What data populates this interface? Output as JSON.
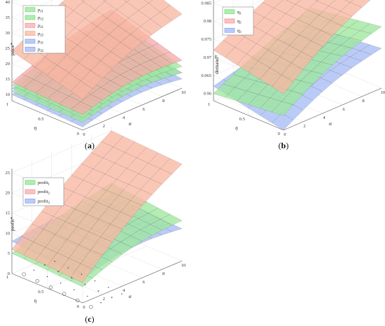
{
  "chart_data": [
    {
      "type": "surface3d",
      "panel_label": "a",
      "zlabel": "price*",
      "xlabel": "α",
      "ylabel": "η",
      "x_ticks": [
        "0",
        "2",
        "4",
        "6",
        "8",
        "10"
      ],
      "y_ticks": [
        "0",
        "0.5",
        "1"
      ],
      "z_ticks": [
        "10",
        "15",
        "20",
        "25",
        "30",
        "35",
        "40"
      ],
      "xlim": [
        0,
        10
      ],
      "ylim": [
        0,
        1
      ],
      "zlim": [
        8,
        42
      ],
      "legend": [
        "p11",
        "p12",
        "p21",
        "p22",
        "p31",
        "p32"
      ],
      "legend_sub": [
        [
          "p",
          "11"
        ],
        [
          "p",
          "12"
        ],
        [
          "p",
          "21"
        ],
        [
          "p",
          "22"
        ],
        [
          "p",
          "31"
        ],
        [
          "p",
          "32"
        ]
      ],
      "colors": [
        "#7ee07e",
        "#7ee07e",
        "#f59a9a",
        "#f5a98a",
        "#8fa8f0",
        "#8fa8f0"
      ],
      "surfaces": [
        {
          "name": "p11",
          "corners": {
            "a0e0": 10.5,
            "a10e0": 13,
            "a0e1": 11,
            "a10e1": 18
          },
          "color": "#9fe89f"
        },
        {
          "name": "p12",
          "corners": {
            "a0e0": 12,
            "a10e0": 15,
            "a0e1": 13,
            "a10e1": 22
          },
          "color": "#9fe89f"
        },
        {
          "name": "p21",
          "corners": {
            "a0e0": 13,
            "a10e0": 17,
            "a0e1": 14,
            "a10e1": 24
          },
          "color": "#f7aaaa"
        },
        {
          "name": "p22",
          "corners": {
            "a0e0": 18,
            "a10e0": 32,
            "a0e1": 24,
            "a10e1": 40
          },
          "color": "#f8b7a3"
        },
        {
          "name": "p31",
          "corners": {
            "a0e0": 9,
            "a10e0": 11,
            "a0e1": 10,
            "a10e1": 14
          },
          "color": "#a8bcf5"
        },
        {
          "name": "p32",
          "corners": {
            "a0e0": 11,
            "a10e0": 13,
            "a0e1": 12,
            "a10e1": 16
          },
          "color": "#a8bcf5"
        }
      ]
    },
    {
      "type": "surface3d",
      "panel_label": "b",
      "zlabel": "demand*",
      "xlabel": "α",
      "ylabel": "η",
      "x_ticks": [
        "0",
        "2",
        "4",
        "6",
        "8",
        "10"
      ],
      "y_ticks": [
        "0",
        "0.5",
        "1"
      ],
      "z_ticks": [
        "0.96",
        "0.965",
        "0.97",
        "0.975",
        "0.98",
        "0.985"
      ],
      "xlim": [
        0,
        10
      ],
      "ylim": [
        0,
        1
      ],
      "zlim": [
        0.958,
        0.987
      ],
      "legend": [
        "q1",
        "q2",
        "q3"
      ],
      "legend_sub": [
        [
          "q",
          "1"
        ],
        [
          "q",
          "2"
        ],
        [
          "q",
          "3"
        ]
      ],
      "colors": [
        "#7ee07e",
        "#f59a9a",
        "#8fa8f0"
      ],
      "surfaces": [
        {
          "name": "q1",
          "corners": {
            "a0e0": 0.962,
            "a10e0": 0.975,
            "a0e1": 0.96,
            "a10e1": 0.972
          },
          "color": "#9fe89f"
        },
        {
          "name": "q2",
          "corners": {
            "a0e0": 0.968,
            "a10e0": 0.985,
            "a0e1": 0.972,
            "a10e1": 0.985
          },
          "color": "#f8b7a3"
        },
        {
          "name": "q3",
          "corners": {
            "a0e0": 0.958,
            "a10e0": 0.969,
            "a0e1": 0.962,
            "a10e1": 0.967
          },
          "color": "#a8bcf5"
        }
      ]
    },
    {
      "type": "surface3d",
      "panel_label": "c",
      "zlabel": "profit*",
      "xlabel": "α",
      "ylabel": "η",
      "x_ticks": [
        "0",
        "2",
        "4",
        "6",
        "8",
        "10"
      ],
      "y_ticks": [
        "0",
        "0.5",
        "1"
      ],
      "z_ticks": [
        "0",
        "5",
        "10",
        "15",
        "20",
        "25"
      ],
      "xlim": [
        0,
        10
      ],
      "ylim": [
        0,
        1
      ],
      "zlim": [
        0,
        26
      ],
      "legend": [
        "profit1",
        "profit2",
        "profit3"
      ],
      "legend_sub": [
        [
          "profit",
          "1"
        ],
        [
          "profit",
          "2"
        ],
        [
          "profit",
          "3"
        ]
      ],
      "colors": [
        "#7ee07e",
        "#f59a9a",
        "#8fa8f0"
      ],
      "surfaces": [
        {
          "name": "profit1",
          "corners": {
            "a0e0": 4,
            "a10e0": 10,
            "a0e1": 5,
            "a10e1": 12
          },
          "color": "#9fe89f"
        },
        {
          "name": "profit2",
          "corners": {
            "a0e0": 5,
            "a10e0": 24,
            "a0e1": 6,
            "a10e1": 25
          },
          "color": "#f8b7a3"
        },
        {
          "name": "profit3",
          "corners": {
            "a0e0": 6,
            "a10e0": 8,
            "a0e1": 8,
            "a10e1": 9
          },
          "color": "#a8bcf5"
        }
      ]
    }
  ]
}
